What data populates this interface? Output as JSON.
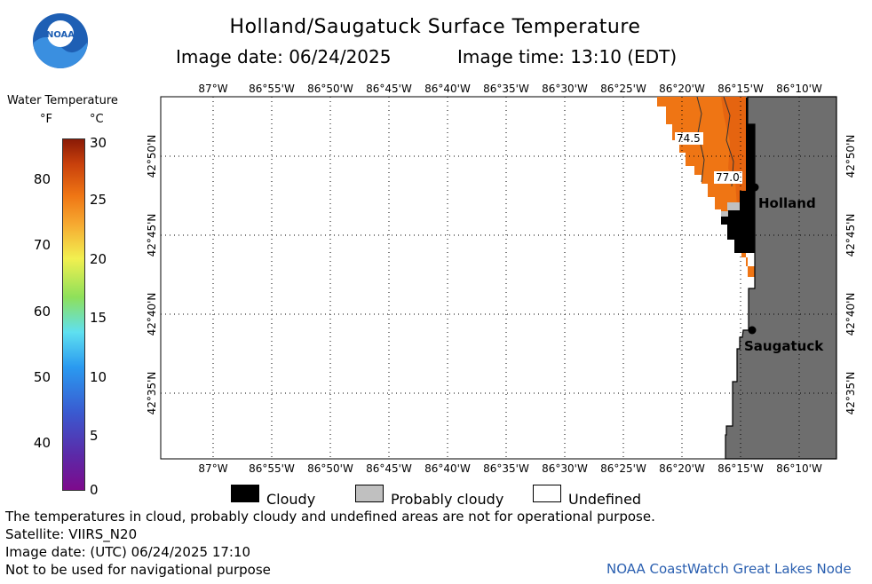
{
  "header": {
    "title": "Holland/Saugatuck Surface Temperature",
    "image_date": "Image date: 06/24/2025",
    "image_time": "Image time: 13:10 (EDT)"
  },
  "logo": {
    "text": "NOAA",
    "icon": "noaa-logo-icon"
  },
  "legend": {
    "title": "Water Temperature",
    "unit_f": "°F",
    "unit_c": "°C",
    "f_ticks": [
      "80",
      "70",
      "60",
      "50",
      "40"
    ],
    "c_ticks": [
      "30",
      "25",
      "20",
      "15",
      "10",
      "5",
      "0"
    ]
  },
  "map": {
    "lon_labels": [
      "87°W",
      "86°55'W",
      "86°50'W",
      "86°45'W",
      "86°40'W",
      "86°35'W",
      "86°30'W",
      "86°25'W",
      "86°20'W",
      "86°15'W",
      "86°10'W"
    ],
    "lat_labels": [
      "42°50'N",
      "42°45'N",
      "42°40'N",
      "42°35'N"
    ],
    "places": [
      {
        "name": "Holland"
      },
      {
        "name": "Saugatuck"
      }
    ],
    "isotherms": [
      "74.5",
      "77.0"
    ],
    "colors": {
      "land": "#6e6e6e",
      "cloud": "#000000",
      "probably_cloudy": "#c0c0c0",
      "water_warm": "#ef7514",
      "water_hot": "#e86a10"
    }
  },
  "key": {
    "cloudy": "Cloudy",
    "probably_cloudy": "Probably cloudy",
    "undefined": "Undefined"
  },
  "footer": {
    "note": "The temperatures in cloud, probably cloudy and undefined areas are not for operational purpose.",
    "satellite": "Satellite: VIIRS_N20",
    "utc_date": "Image date: (UTC) 06/24/2025  17:10",
    "warning": "Not to be used for navigational purpose",
    "credit": "NOAA CoastWatch Great Lakes Node"
  }
}
